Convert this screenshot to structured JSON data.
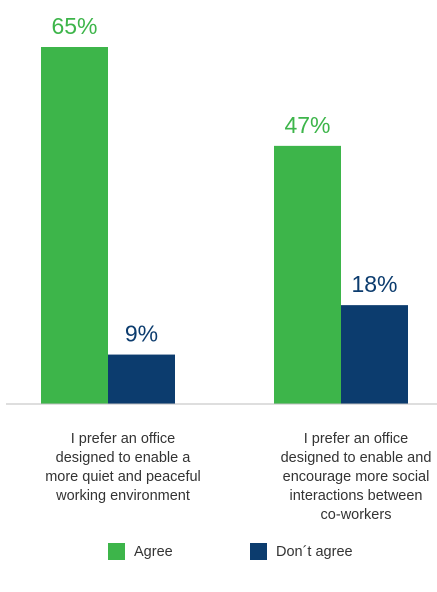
{
  "chart_data": {
    "type": "bar",
    "categories": [
      "I prefer an office designed to enable a more quiet and peaceful working environment",
      "I prefer an office designed to enable and encourage more social interactions between co-workers"
    ],
    "category_lines": [
      [
        "I prefer an office",
        "designed to enable a",
        "more quiet and peaceful",
        "working environment"
      ],
      [
        "I prefer an office",
        "designed to enable and",
        "encourage more social",
        "interactions between",
        "co-workers"
      ]
    ],
    "series": [
      {
        "name": "Agree",
        "color": "#3db54a",
        "values": [
          65,
          47
        ],
        "labels": [
          "65%",
          "47%"
        ]
      },
      {
        "name": "Don´t agree",
        "color": "#0c3c6e",
        "values": [
          9,
          18
        ],
        "labels": [
          "9%",
          "18%"
        ]
      }
    ],
    "unit": "%",
    "ylim": [
      0,
      70
    ],
    "grid": false,
    "legend_position": "bottom"
  }
}
